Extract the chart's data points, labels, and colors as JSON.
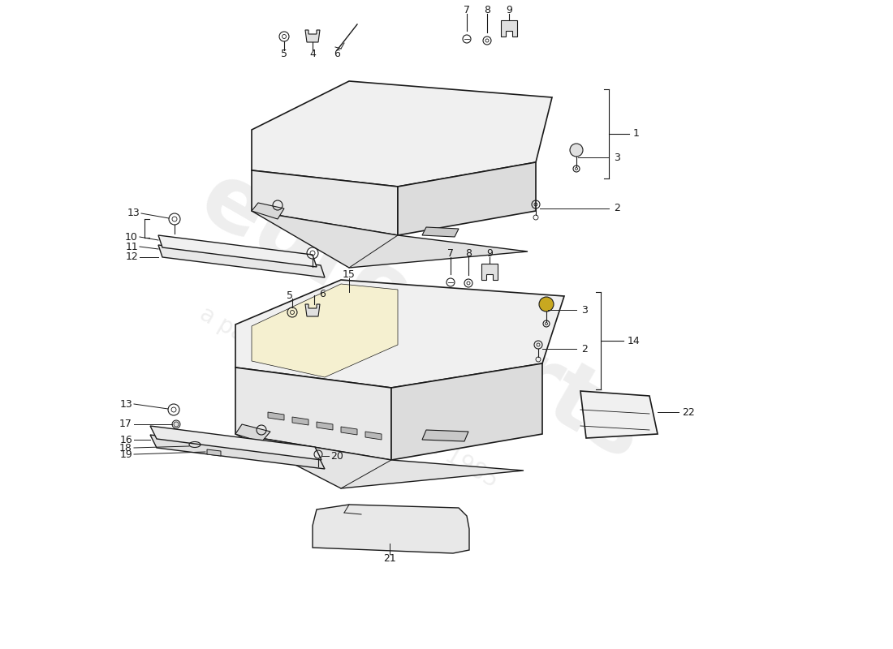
{
  "title": "",
  "background_color": "#ffffff",
  "watermark_text1": "europarts",
  "watermark_text2": "a passion for parts since 1985",
  "watermark_color": "#c8c8c8",
  "line_color": "#1a1a1a",
  "label_color": "#1a1a1a",
  "font_size_labels": 9,
  "fig_width": 11.0,
  "fig_height": 8.0
}
